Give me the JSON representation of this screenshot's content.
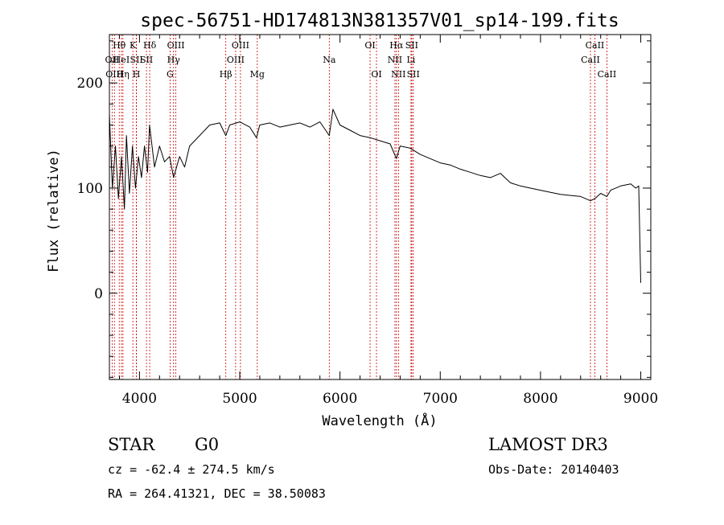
{
  "chart_data": {
    "type": "line",
    "title": "spec-56751-HD174813N381357V01_sp14-199.fits",
    "xlabel": "Wavelength (Å)",
    "ylabel": "Flux (relative)",
    "xlim": [
      3700,
      9100
    ],
    "ylim": [
      -82,
      246
    ],
    "xticks": [
      4000,
      5000,
      6000,
      7000,
      8000,
      9000
    ],
    "yticks": [
      0,
      100,
      200
    ],
    "grid": false,
    "series": [
      {
        "name": "spectrum",
        "points": [
          [
            3700,
            170
          ],
          [
            3730,
            100
          ],
          [
            3760,
            140
          ],
          [
            3790,
            90
          ],
          [
            3820,
            130
          ],
          [
            3850,
            80
          ],
          [
            3870,
            150
          ],
          [
            3900,
            95
          ],
          [
            3930,
            140
          ],
          [
            3960,
            100
          ],
          [
            3990,
            130
          ],
          [
            4020,
            110
          ],
          [
            4050,
            140
          ],
          [
            4080,
            115
          ],
          [
            4100,
            160
          ],
          [
            4150,
            120
          ],
          [
            4200,
            140
          ],
          [
            4250,
            125
          ],
          [
            4300,
            130
          ],
          [
            4340,
            110
          ],
          [
            4400,
            130
          ],
          [
            4450,
            120
          ],
          [
            4500,
            140
          ],
          [
            4600,
            150
          ],
          [
            4700,
            160
          ],
          [
            4800,
            162
          ],
          [
            4861,
            150
          ],
          [
            4900,
            160
          ],
          [
            5000,
            163
          ],
          [
            5100,
            158
          ],
          [
            5167,
            148
          ],
          [
            5200,
            160
          ],
          [
            5300,
            162
          ],
          [
            5400,
            158
          ],
          [
            5500,
            160
          ],
          [
            5600,
            162
          ],
          [
            5700,
            158
          ],
          [
            5800,
            163
          ],
          [
            5893,
            150
          ],
          [
            5930,
            175
          ],
          [
            6000,
            160
          ],
          [
            6100,
            155
          ],
          [
            6200,
            150
          ],
          [
            6300,
            148
          ],
          [
            6400,
            145
          ],
          [
            6500,
            142
          ],
          [
            6563,
            128
          ],
          [
            6600,
            140
          ],
          [
            6700,
            138
          ],
          [
            6800,
            132
          ],
          [
            6900,
            128
          ],
          [
            7000,
            124
          ],
          [
            7100,
            122
          ],
          [
            7200,
            118
          ],
          [
            7300,
            115
          ],
          [
            7400,
            112
          ],
          [
            7500,
            110
          ],
          [
            7600,
            114
          ],
          [
            7700,
            105
          ],
          [
            7800,
            102
          ],
          [
            7900,
            100
          ],
          [
            8000,
            98
          ],
          [
            8100,
            96
          ],
          [
            8200,
            94
          ],
          [
            8300,
            93
          ],
          [
            8400,
            92
          ],
          [
            8498,
            88
          ],
          [
            8542,
            90
          ],
          [
            8600,
            95
          ],
          [
            8662,
            92
          ],
          [
            8700,
            98
          ],
          [
            8800,
            102
          ],
          [
            8900,
            104
          ],
          [
            8950,
            100
          ],
          [
            8980,
            102
          ],
          [
            9000,
            10
          ]
        ]
      }
    ],
    "lines": [
      {
        "label": "OII",
        "x": 3727,
        "row": 1
      },
      {
        "label": "OIII",
        "x": 3750,
        "row": 2
      },
      {
        "label": "Hθ",
        "x": 3798,
        "row": 0
      },
      {
        "label": "HeI",
        "x": 3820,
        "row": 1
      },
      {
        "label": "Hη",
        "x": 3835,
        "row": 2
      },
      {
        "label": "K",
        "x": 3934,
        "row": 0
      },
      {
        "label": "SII",
        "x": 3970,
        "row": 1
      },
      {
        "label": "H",
        "x": 3969,
        "row": 2
      },
      {
        "label": "Hδ",
        "x": 4102,
        "row": 0
      },
      {
        "label": "SII",
        "x": 4070,
        "row": 1
      },
      {
        "label": "OIII",
        "x": 4363,
        "row": 0
      },
      {
        "label": "Hγ",
        "x": 4340,
        "row": 1
      },
      {
        "label": "G",
        "x": 4305,
        "row": 2
      },
      {
        "label": "OIII",
        "x": 5007,
        "row": 0
      },
      {
        "label": "OIII",
        "x": 4959,
        "row": 1
      },
      {
        "label": "Hβ",
        "x": 4861,
        "row": 2
      },
      {
        "label": "Mg",
        "x": 5175,
        "row": 2
      },
      {
        "label": "Na",
        "x": 5893,
        "row": 1
      },
      {
        "label": "OI",
        "x": 6300,
        "row": 0
      },
      {
        "label": "OI",
        "x": 6364,
        "row": 2
      },
      {
        "label": "Hα",
        "x": 6563,
        "row": 0
      },
      {
        "label": "NII",
        "x": 6548,
        "row": 1
      },
      {
        "label": "NII",
        "x": 6583,
        "row": 2
      },
      {
        "label": "SII",
        "x": 6716,
        "row": 0
      },
      {
        "label": "Li",
        "x": 6708,
        "row": 1
      },
      {
        "label": "SII",
        "x": 6731,
        "row": 2
      },
      {
        "label": "CaII",
        "x": 8542,
        "row": 0
      },
      {
        "label": "CaII",
        "x": 8498,
        "row": 1
      },
      {
        "label": "CaII",
        "x": 8662,
        "row": 2
      }
    ]
  },
  "info": {
    "object_class": "STAR",
    "subclass": "G0",
    "survey": "LAMOST DR3",
    "cz": "cz = -62.4 ± 274.5 km/s",
    "obs_date": "Obs-Date: 20140403",
    "coords": "RA = 264.41321, DEC =  38.50083"
  },
  "colors": {
    "spectrum": "#000000",
    "line_marker": "#cc0000",
    "axes": "#000000"
  }
}
